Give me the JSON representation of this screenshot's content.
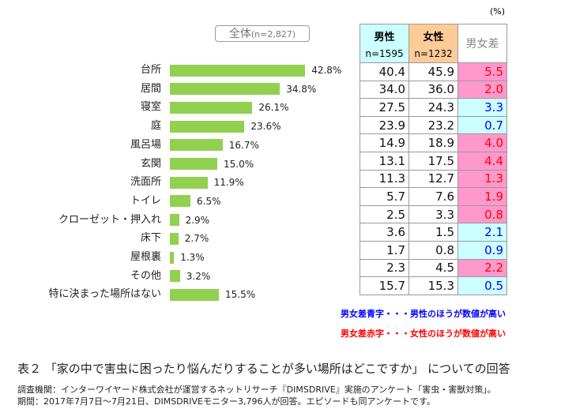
{
  "chart_data": {
    "type": "bar",
    "title": "全体",
    "title_n": "(n=2,827)",
    "unit": "(%)",
    "categories": [
      "台所",
      "居間",
      "寝室",
      "庭",
      "風呂場",
      "玄関",
      "洗面所",
      "トイレ",
      "クローゼット・押入れ",
      "床下",
      "屋根裏",
      "その他",
      "特に決まった場所はない"
    ],
    "values": [
      42.8,
      34.8,
      26.1,
      23.6,
      16.7,
      15.0,
      11.9,
      6.5,
      2.9,
      2.7,
      1.3,
      3.2,
      15.5
    ],
    "value_labels": [
      "42.8%",
      "34.8%",
      "26.1%",
      "23.6%",
      "16.7%",
      "15.0%",
      "11.9%",
      "6.5%",
      "2.9%",
      "2.7%",
      "1.3%",
      "3.2%",
      "15.5%"
    ],
    "bar_color": "#92d050",
    "table": {
      "headers": [
        {
          "label": "男性",
          "n": "n=1595",
          "color": "#ccffff"
        },
        {
          "label": "女性",
          "n": "n=1232",
          "color": "#ffcc99"
        },
        {
          "label": "男女差",
          "n": "",
          "color": "#ffffff"
        }
      ],
      "male": [
        "40.4",
        "34.0",
        "27.5",
        "23.9",
        "14.9",
        "13.1",
        "11.3",
        "5.7",
        "2.5",
        "3.6",
        "1.7",
        "2.3",
        "15.7"
      ],
      "female": [
        "45.9",
        "36.0",
        "24.3",
        "23.2",
        "18.9",
        "17.5",
        "12.7",
        "7.6",
        "3.3",
        "1.5",
        "0.8",
        "4.5",
        "15.3"
      ],
      "diff": [
        "5.5",
        "2.0",
        "3.3",
        "0.7",
        "4.0",
        "4.4",
        "1.3",
        "1.9",
        "0.8",
        "2.1",
        "0.9",
        "2.2",
        "0.5"
      ],
      "diff_higher": [
        "female",
        "female",
        "male",
        "male",
        "female",
        "female",
        "female",
        "female",
        "female",
        "male",
        "male",
        "female",
        "male"
      ]
    },
    "colors": {
      "male_higher_bg": "#ccffff",
      "male_higher_text": "#0000ff",
      "female_higher_bg": "#ff99cc",
      "female_higher_text": "#ff0000"
    }
  },
  "legend": {
    "blue": "男女差青字・・・男性のほうが数値が高い",
    "red": "男女差赤字・・・女性のほうが数値が高い"
  },
  "caption": "表２ 「家の中で害虫に困ったり悩んだりすることが多い場所はどこですか」 についての回答",
  "notes": [
    "調査機関：インターワイヤード株式会社が運営するネットリサーチ『DIMSDRIVE』実施のアンケート「害虫・害獣対策」。",
    "期間：2017年7月7日～7月21日、DIMSDRIVEモニター3,796人が回答。エピソードも同アンケートです。"
  ]
}
